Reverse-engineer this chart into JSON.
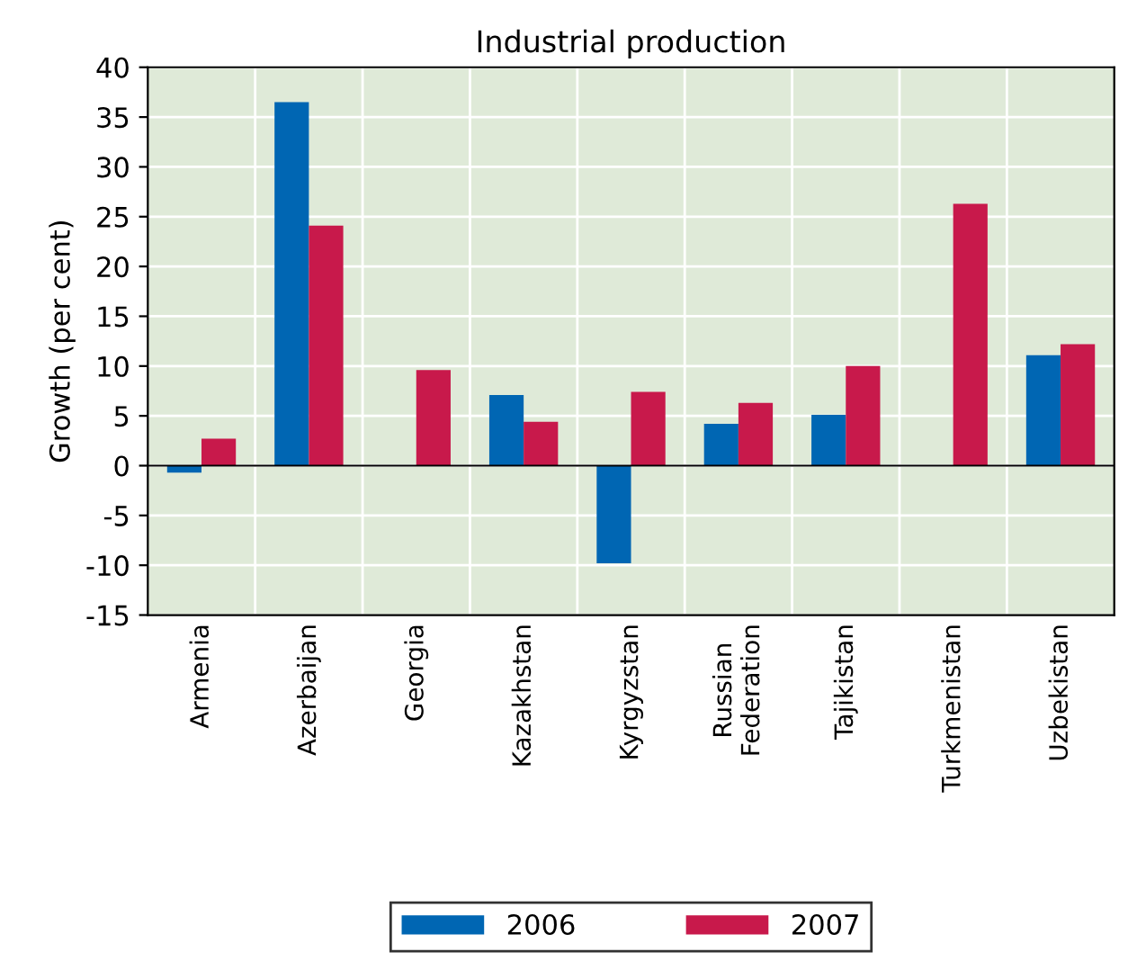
{
  "chart_data": {
    "type": "bar",
    "title": "Industrial production",
    "ylabel": "Growth (per cent)",
    "categories": [
      "Armenia",
      "Azerbaijan",
      "Georgia",
      "Kazakhstan",
      "Kyrgyzstan",
      "Russian\nFederation",
      "Tajikistan",
      "Turkmenistan",
      "Uzbekistan"
    ],
    "series": [
      {
        "name": "2006",
        "color": "#0066b3",
        "values": [
          -0.7,
          36.5,
          null,
          7.1,
          -9.8,
          4.2,
          5.1,
          null,
          11.1
        ]
      },
      {
        "name": "2007",
        "color": "#c8194b",
        "values": [
          2.7,
          24.1,
          9.6,
          4.4,
          7.4,
          6.3,
          10.0,
          26.3,
          12.2
        ]
      }
    ],
    "ylim": [
      -15,
      40
    ],
    "yticks": [
      -15,
      -10,
      -5,
      0,
      5,
      10,
      15,
      20,
      25,
      30,
      35,
      40
    ],
    "grid": true,
    "legend": "bottom"
  }
}
